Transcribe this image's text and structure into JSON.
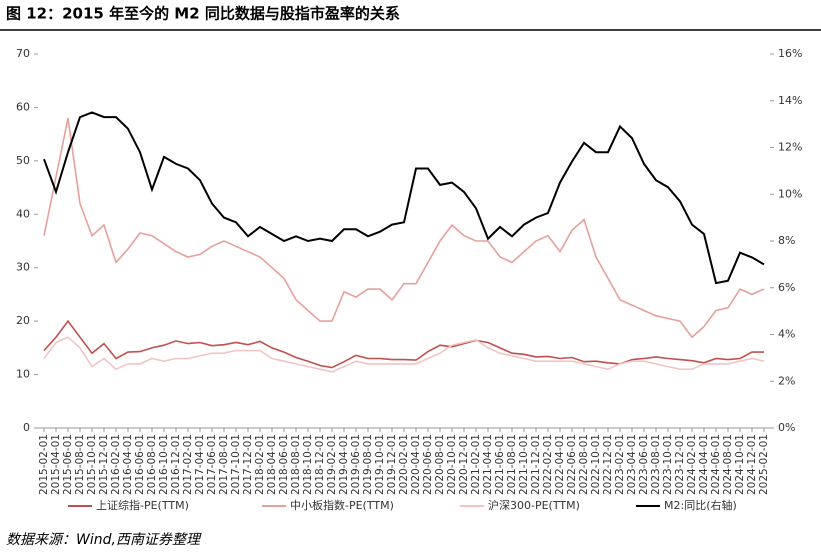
{
  "chart_data": {
    "type": "line",
    "title": "图 12：2015 年至今的 M2 同比数据与股指市盈率的关系",
    "source": "数据来源：Wind,西南证券整理",
    "categories": [
      "2015-02-01",
      "2015-04-01",
      "2015-06-01",
      "2015-08-01",
      "2015-10-01",
      "2015-12-01",
      "2016-02-01",
      "2016-04-01",
      "2016-06-01",
      "2016-08-01",
      "2016-10-01",
      "2016-12-01",
      "2017-02-01",
      "2017-04-01",
      "2017-06-01",
      "2017-08-01",
      "2017-10-01",
      "2017-12-01",
      "2018-02-01",
      "2018-04-01",
      "2018-06-01",
      "2018-08-01",
      "2018-10-01",
      "2018-12-01",
      "2019-02-01",
      "2019-04-01",
      "2019-06-01",
      "2019-08-01",
      "2019-10-01",
      "2019-12-01",
      "2020-02-01",
      "2020-04-01",
      "2020-06-01",
      "2020-08-01",
      "2020-10-01",
      "2020-12-01",
      "2021-02-01",
      "2021-04-01",
      "2021-06-01",
      "2021-08-01",
      "2021-10-01",
      "2021-12-01",
      "2022-02-01",
      "2022-04-01",
      "2022-06-01",
      "2022-08-01",
      "2022-10-01",
      "2022-12-01",
      "2023-02-01",
      "2023-04-01",
      "2023-06-01",
      "2023-08-01",
      "2023-10-01",
      "2023-12-01",
      "2024-02-01",
      "2024-04-01",
      "2024-06-01",
      "2024-08-01",
      "2024-10-01",
      "2024-12-01",
      "2025-02-01"
    ],
    "series": [
      {
        "name": "上证综指-PE(TTM)",
        "color": "#c0504d",
        "values": [
          14.5,
          17,
          20,
          17,
          14,
          15.8,
          13,
          14.2,
          14.3,
          15,
          15.5,
          16.3,
          15.8,
          16,
          15.4,
          15.6,
          16,
          15.6,
          16.2,
          15,
          14.2,
          13.2,
          12.5,
          11.7,
          11.3,
          12.4,
          13.6,
          13,
          13,
          12.8,
          12.8,
          12.7,
          14.3,
          15.5,
          15.2,
          15.8,
          16.4,
          16,
          15,
          14,
          13.8,
          13.3,
          13.4,
          13,
          13.2,
          12.4,
          12.5,
          12.2,
          12,
          12.8,
          13,
          13.3,
          13,
          12.8,
          12.6,
          12.2,
          13,
          12.8,
          13,
          14.2,
          14.2
        ]
      },
      {
        "name": "中小板指数-PE(TTM)",
        "color": "#e6a09b",
        "values": [
          36,
          47,
          58,
          42,
          36,
          38,
          31,
          33.5,
          36.5,
          36,
          34.5,
          33,
          32,
          32.5,
          34,
          35,
          34,
          33,
          32,
          30,
          28,
          24,
          22,
          20,
          20,
          25.5,
          24.5,
          26,
          26,
          24,
          27,
          27,
          31,
          35,
          38,
          36,
          35,
          35,
          32,
          31,
          33,
          35,
          36,
          33,
          37,
          39,
          32,
          28,
          24,
          23,
          22,
          21,
          20.5,
          20,
          17,
          19,
          22,
          22.5,
          26,
          25,
          26
        ]
      },
      {
        "name": "沪深300-PE(TTM)",
        "color": "#f2c4c4",
        "values": [
          13,
          16,
          17,
          15,
          11.5,
          13,
          11,
          12,
          12,
          13,
          12.5,
          13,
          13,
          13.5,
          14,
          14,
          14.5,
          14.5,
          14.5,
          13,
          12.5,
          12,
          11.5,
          11,
          10.5,
          11.5,
          12.5,
          12,
          12,
          12,
          12,
          12,
          13,
          14,
          15.5,
          16,
          16.5,
          15,
          14,
          13.5,
          13,
          12.5,
          12.5,
          12.5,
          12.5,
          12,
          11.5,
          11,
          12,
          12.5,
          12.5,
          12,
          11.5,
          11,
          11,
          12,
          12,
          12,
          12.5,
          13,
          12.5
        ]
      },
      {
        "name": "M2:同比(右轴)",
        "color": "#000000",
        "axis": "y2",
        "values": [
          11.5,
          10.1,
          11.8,
          13.3,
          13.5,
          13.3,
          13.3,
          12.8,
          11.8,
          10.2,
          11.6,
          11.3,
          11.1,
          10.6,
          9.6,
          9.0,
          8.8,
          8.2,
          8.6,
          8.3,
          8.0,
          8.2,
          8.0,
          8.1,
          8.0,
          8.5,
          8.5,
          8.2,
          8.4,
          8.7,
          8.8,
          11.1,
          11.1,
          10.4,
          10.5,
          10.1,
          9.4,
          8.1,
          8.6,
          8.2,
          8.7,
          9.0,
          9.2,
          10.5,
          11.4,
          12.2,
          11.8,
          11.8,
          12.9,
          12.4,
          11.3,
          10.6,
          10.3,
          9.7,
          8.7,
          8.3,
          6.2,
          6.3,
          7.5,
          7.3,
          7.0
        ]
      }
    ],
    "ylim": [
      0,
      70
    ],
    "yticks": [
      0,
      10,
      20,
      30,
      40,
      50,
      60,
      70
    ],
    "y2lim": [
      0,
      16
    ],
    "y2ticks": [
      {
        "value": 0,
        "label": "0%"
      },
      {
        "value": 2,
        "label": "2%"
      },
      {
        "value": 4,
        "label": "4%"
      },
      {
        "value": 6,
        "label": "6%"
      },
      {
        "value": 8,
        "label": "8%"
      },
      {
        "value": 10,
        "label": "10%"
      },
      {
        "value": 12,
        "label": "12%"
      },
      {
        "value": 14,
        "label": "14%"
      },
      {
        "value": 16,
        "label": "16%"
      }
    ],
    "grid": false,
    "legend": "bottom"
  }
}
